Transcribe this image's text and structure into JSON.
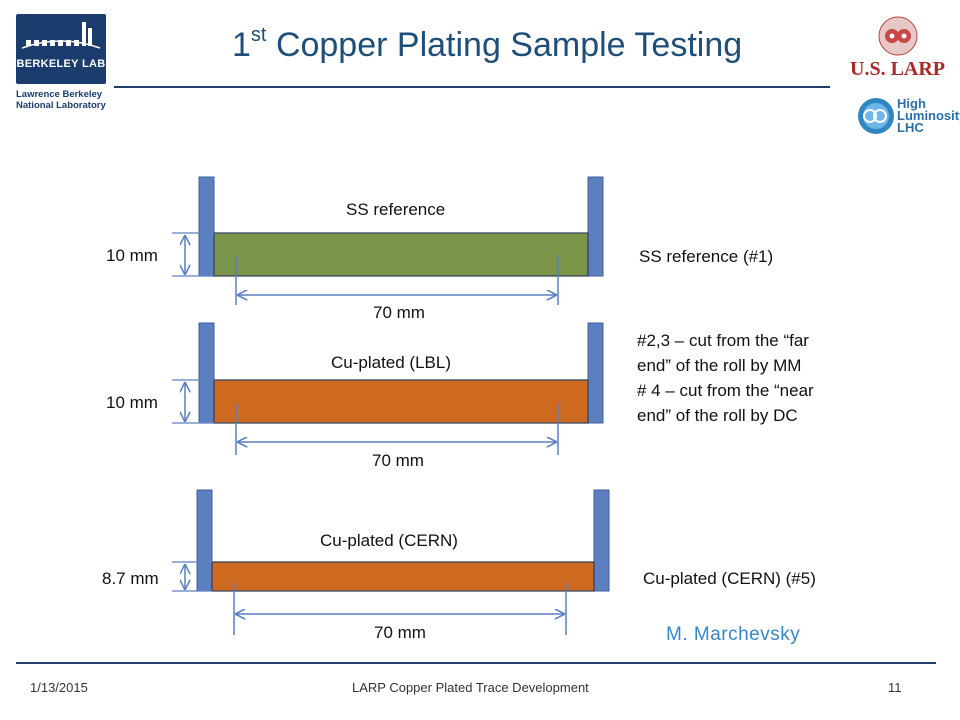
{
  "header": {
    "title_superscript_number": "1",
    "title_superscript": "st",
    "title_main": "Copper Plating Sample Testing",
    "lab_logo_text": "BERKELEY LAB",
    "lab_name_line1": "Lawrence Berkeley",
    "lab_name_line2": "National Laboratory",
    "larp_logo_text": "U.S. LARP",
    "hl_logo_line1": "High",
    "hl_logo_line2": "Luminosity",
    "hl_logo_line3": "LHC"
  },
  "samples": [
    {
      "title": "SS reference",
      "height_label": "10 mm",
      "length_label": "70 mm",
      "fill_color": "#7a9448",
      "note_lines": [
        "SS reference (#1)"
      ]
    },
    {
      "title": "Cu-plated (LBL)",
      "height_label": "10 mm",
      "length_label": "70 mm",
      "fill_color": "#cd6a20",
      "note_lines": [
        "#2,3 – cut from the “far",
        "end” of the roll by MM",
        "# 4 – cut from the “near",
        "end” of the roll by DC"
      ]
    },
    {
      "title": "Cu-plated (CERN)",
      "height_label": "8.7 mm",
      "length_label": "70 mm",
      "fill_color": "#cd6a20",
      "note_lines": [
        "Cu-plated (CERN)  (#5)"
      ]
    }
  ],
  "colors": {
    "clamp": "#5b7fbf",
    "clamp_border": "#3f5f99",
    "dimension_line": "#5b7fbf",
    "title": "#1f4e79",
    "rule": "#1f3e6b",
    "author": "#3a86c8"
  },
  "author": "M. Marchevsky",
  "footer": {
    "date": "1/13/2015",
    "center": "LARP Copper Plated Trace Development",
    "page": "11"
  }
}
